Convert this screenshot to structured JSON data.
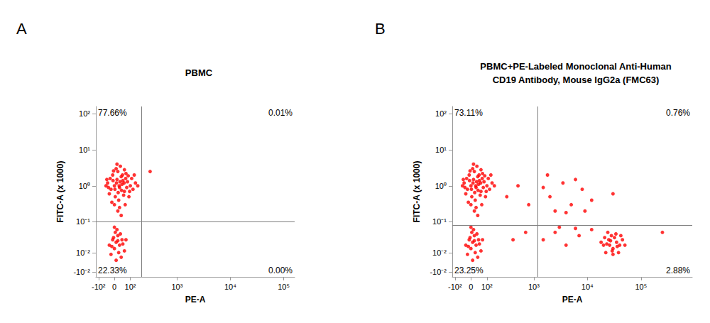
{
  "chart_data": [
    {
      "type": "scatter",
      "panel_label": "A",
      "title": "PBMC",
      "x_label": "PE-A",
      "y_label": "FITC-A (x 1000)",
      "log": true,
      "grid": false,
      "color": "#ff0000",
      "marker": "circle",
      "xlim": [
        -120,
        160000
      ],
      "ylim": [
        -0.016,
        160
      ],
      "xticks": [
        {
          "value": -100,
          "label": "-10²"
        },
        0,
        {
          "value": 100,
          "label": "10²"
        },
        {
          "value": 1000,
          "label": "10³"
        },
        {
          "value": 10000,
          "label": "10⁴"
        },
        {
          "value": 100000,
          "label": "10⁵"
        }
      ],
      "yticks": [
        {
          "value": -0.01,
          "label": "-10⁻²"
        },
        {
          "value": 0.01,
          "label": "10⁻²"
        },
        {
          "value": 0.1,
          "label": "10⁻¹"
        },
        {
          "value": 1,
          "label": "10⁰"
        },
        {
          "value": 10,
          "label": "10¹"
        },
        {
          "value": 100,
          "label": "10²"
        }
      ],
      "gate": {
        "x": 200,
        "y": 0.1
      },
      "quadrants": {
        "values": [
          77.66,
          0.01,
          22.33,
          0.0
        ],
        "value_labels": [
          "77.66%",
          "0.01%",
          "22.33%",
          "0.00%"
        ]
      },
      "x": [
        -40,
        -20,
        0,
        15,
        30,
        45,
        60,
        80,
        -10,
        20,
        40,
        70,
        100,
        120,
        -30,
        5,
        25,
        55,
        90,
        -50,
        10,
        35,
        60,
        -25,
        50,
        75,
        110,
        140,
        0,
        30,
        -15,
        65,
        20,
        40,
        15,
        -5,
        85,
        95,
        -35,
        12,
        28,
        42,
        58,
        -8,
        22,
        48,
        68,
        33,
        3,
        160,
        130,
        -45,
        -30,
        -10,
        0,
        10,
        20,
        30,
        45,
        60,
        -20,
        5,
        15,
        25,
        40,
        -5,
        35,
        50,
        10,
        -15,
        20,
        70,
        0,
        300
      ],
      "values": [
        1.2,
        0.8,
        1.0,
        1.5,
        0.9,
        1.1,
        0.7,
        1.3,
        2.0,
        2.5,
        1.8,
        2.2,
        1.0,
        0.8,
        0.6,
        0.5,
        0.4,
        0.55,
        0.5,
        1.0,
        3.0,
        3.5,
        2.8,
        1.6,
        1.4,
        0.9,
        1.6,
        1.2,
        0.3,
        0.25,
        0.35,
        0.3,
        0.2,
        0.15,
        4.0,
        2.6,
        1.9,
        0.7,
        0.9,
        1.2,
        1.0,
        0.75,
        1.2,
        1.4,
        0.65,
        2.0,
        1.6,
        1.3,
        0.8,
        1.0,
        2.0,
        1.5,
        0.02,
        0.03,
        0.015,
        0.025,
        0.04,
        0.02,
        0.03,
        0.012,
        0.008,
        0.05,
        0.06,
        0.01,
        0.005,
        0.035,
        0.045,
        0.022,
        0.002,
        0.018,
        0.028,
        0.03,
        0.07,
        2.5
      ]
    },
    {
      "type": "scatter",
      "panel_label": "B",
      "title": "PBMC+PE-Labeled Monoclonal Anti-Human\nCD19 Antibody, Mouse IgG2a (FMC63)",
      "x_label": "PE-A",
      "y_label": "FITC-A (x 1000)",
      "log": true,
      "grid": false,
      "color": "#ff0000",
      "marker": "circle",
      "xlim": [
        -120,
        900000
      ],
      "ylim": [
        -0.016,
        160
      ],
      "xticks": [
        {
          "value": -100,
          "label": "-10²"
        },
        0,
        {
          "value": 100,
          "label": "10²"
        },
        {
          "value": 1000,
          "label": "10³"
        },
        {
          "value": 10000,
          "label": "10⁴"
        },
        {
          "value": 100000,
          "label": "10⁵"
        }
      ],
      "yticks": [
        {
          "value": -0.01,
          "label": "-10⁻²"
        },
        {
          "value": 0.01,
          "label": "10⁻²"
        },
        {
          "value": 0.1,
          "label": "10⁻¹"
        },
        {
          "value": 1,
          "label": "10⁰"
        },
        {
          "value": 10,
          "label": "10¹"
        },
        {
          "value": 100,
          "label": "10²"
        }
      ],
      "gate": {
        "x": 1200,
        "y": 0.08
      },
      "quadrants": {
        "values": [
          73.11,
          0.76,
          23.25,
          2.88
        ],
        "value_labels": [
          "73.11%",
          "0.76%",
          "23.25%",
          "2.88%"
        ]
      },
      "x": [
        -40,
        -20,
        0,
        15,
        30,
        45,
        60,
        80,
        -10,
        20,
        40,
        70,
        100,
        120,
        -30,
        5,
        25,
        55,
        90,
        -50,
        10,
        35,
        60,
        -25,
        50,
        75,
        110,
        140,
        0,
        30,
        -15,
        65,
        20,
        40,
        15,
        -5,
        85,
        95,
        -35,
        12,
        28,
        42,
        58,
        -8,
        22,
        48,
        68,
        33,
        3,
        160,
        130,
        -45,
        300,
        500,
        800,
        -30,
        -10,
        0,
        10,
        20,
        30,
        45,
        60,
        -20,
        5,
        15,
        25,
        40,
        -5,
        35,
        50,
        10,
        -15,
        20,
        70,
        0,
        400,
        700,
        2000,
        3500,
        5000,
        8000,
        1800,
        12000,
        2500,
        6000,
        30000,
        1500,
        4000,
        9000,
        20000,
        25000,
        30000,
        35000,
        40000,
        22000,
        28000,
        32000,
        45000,
        18000,
        26000,
        38000,
        24000,
        30000,
        34000,
        42000,
        27000,
        21000,
        50000,
        36000,
        29000,
        23000,
        1500,
        2500,
        4000,
        7000,
        12000,
        3000,
        6000,
        250000
      ],
      "values": [
        1.2,
        0.8,
        1.0,
        1.5,
        0.9,
        1.1,
        0.7,
        1.3,
        2.0,
        2.5,
        1.8,
        2.2,
        1.0,
        0.8,
        0.6,
        0.5,
        0.4,
        0.55,
        0.5,
        1.0,
        3.0,
        3.5,
        2.8,
        1.6,
        1.4,
        0.9,
        1.6,
        1.2,
        0.3,
        0.25,
        0.35,
        0.3,
        0.2,
        0.15,
        4.0,
        2.6,
        1.9,
        0.7,
        0.9,
        1.2,
        1.0,
        0.75,
        1.2,
        1.4,
        0.65,
        2.0,
        1.6,
        1.3,
        0.8,
        1.0,
        2.0,
        1.5,
        0.5,
        1.0,
        0.3,
        0.02,
        0.03,
        0.015,
        0.025,
        0.04,
        0.02,
        0.03,
        0.012,
        0.008,
        0.05,
        0.06,
        0.01,
        0.005,
        0.035,
        0.045,
        0.022,
        0.002,
        0.018,
        0.028,
        0.03,
        0.07,
        0.03,
        0.05,
        0.5,
        1.2,
        0.3,
        0.8,
        2.0,
        0.4,
        0.2,
        1.5,
        0.6,
        0.9,
        0.18,
        0.2,
        0.02,
        0.03,
        0.015,
        0.025,
        0.02,
        0.01,
        0.04,
        0.035,
        0.03,
        0.025,
        0.02,
        0.01,
        0.05,
        0.008,
        0.045,
        0.04,
        0.028,
        0.035,
        0.02,
        0.018,
        0.012,
        0.022,
        0.03,
        0.05,
        0.02,
        0.04,
        0.06,
        0.07,
        0.065,
        0.05
      ]
    }
  ]
}
